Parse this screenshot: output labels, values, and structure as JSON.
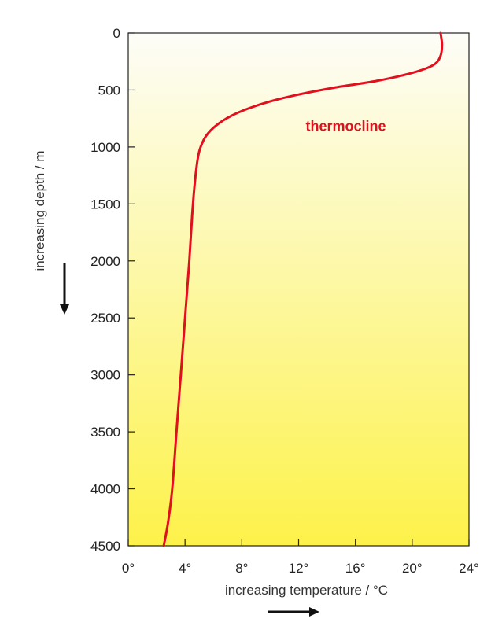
{
  "chart_data": {
    "type": "line",
    "title": "",
    "xlabel": "increasing temperature / °C",
    "ylabel": "increasing depth / m",
    "xlim": [
      0,
      24
    ],
    "ylim": [
      4500,
      0
    ],
    "y_inverted": true,
    "x_ticks": [
      0,
      4,
      8,
      12,
      16,
      20,
      24
    ],
    "x_tick_labels": [
      "0°",
      "4°",
      "8°",
      "12°",
      "16°",
      "20°",
      "24°"
    ],
    "y_ticks": [
      0,
      500,
      1000,
      1500,
      2000,
      2500,
      3000,
      3500,
      4000,
      4500
    ],
    "y_tick_labels": [
      "0",
      "500",
      "1000",
      "1500",
      "2000",
      "2500",
      "3000",
      "3500",
      "4000",
      "4500"
    ],
    "grid": false,
    "background_gradient": [
      "#fdfdf8",
      "#fdf24a"
    ],
    "series": [
      {
        "color": "#e0101e",
        "x": [
          22.0,
          22.1,
          22.0,
          21.5,
          20.0,
          17.5,
          14.5,
          12.0,
          10.0,
          8.5,
          7.2,
          6.2,
          5.5,
          5.1,
          4.9,
          4.7,
          4.5,
          4.3,
          4.0,
          3.7,
          3.4,
          3.1,
          2.8,
          2.5
        ],
        "y": [
          0,
          100,
          200,
          280,
          350,
          420,
          480,
          540,
          600,
          660,
          730,
          810,
          900,
          1000,
          1100,
          1300,
          1600,
          2000,
          2500,
          3000,
          3500,
          4000,
          4300,
          4500
        ]
      }
    ],
    "annotations": [
      {
        "text": "thermocline",
        "x": 12.5,
        "y": 860,
        "color": "#e0101e"
      }
    ],
    "x_direction_arrow": "right",
    "y_direction_arrow": "down"
  }
}
